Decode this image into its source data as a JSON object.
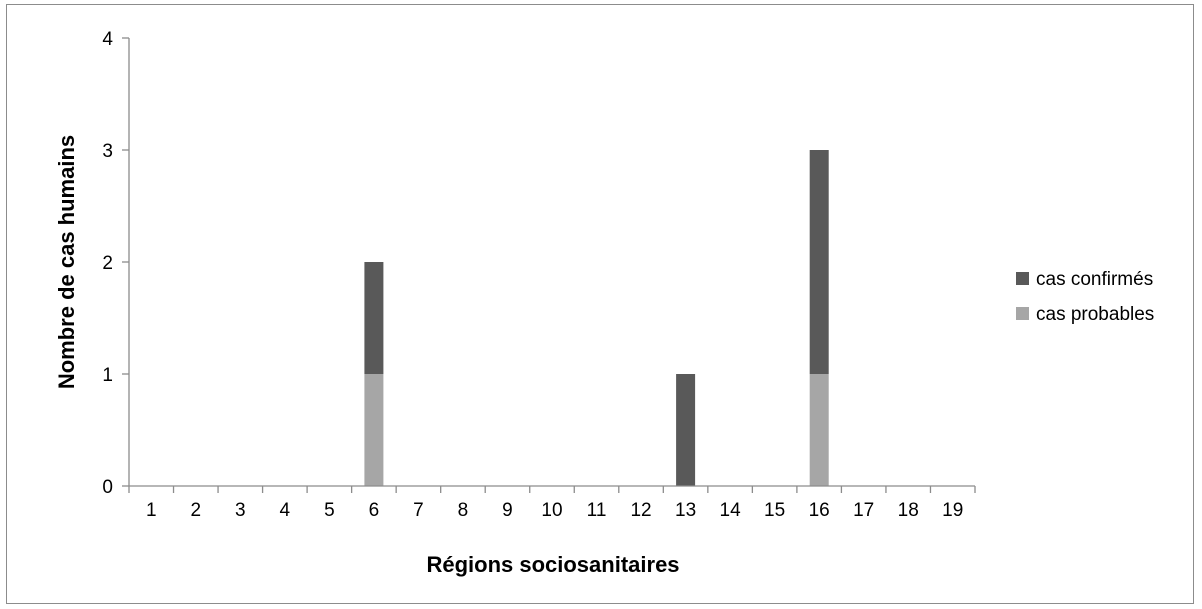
{
  "chart_data": {
    "type": "bar",
    "stacked": true,
    "title": "",
    "xlabel": "Régions sociosanitaires",
    "ylabel": "Nombre de cas humains",
    "categories": [
      "1",
      "2",
      "3",
      "4",
      "5",
      "6",
      "7",
      "8",
      "9",
      "10",
      "11",
      "12",
      "13",
      "14",
      "15",
      "16",
      "17",
      "18",
      "19"
    ],
    "ylim": [
      0,
      4
    ],
    "yticks": [
      "0",
      "1",
      "2",
      "3",
      "4"
    ],
    "grid": false,
    "legend_position": "right",
    "series": [
      {
        "name": "cas probables",
        "color": "#a6a6a6",
        "values": [
          0,
          0,
          0,
          0,
          0,
          1,
          0,
          0,
          0,
          0,
          0,
          0,
          0,
          0,
          0,
          1,
          0,
          0,
          0
        ]
      },
      {
        "name": "cas confirmés",
        "color": "#595959",
        "values": [
          0,
          0,
          0,
          0,
          0,
          1,
          0,
          0,
          0,
          0,
          0,
          0,
          1,
          0,
          0,
          2,
          0,
          0,
          0
        ]
      }
    ],
    "legend_order": [
      "cas confirmés",
      "cas probables"
    ]
  }
}
